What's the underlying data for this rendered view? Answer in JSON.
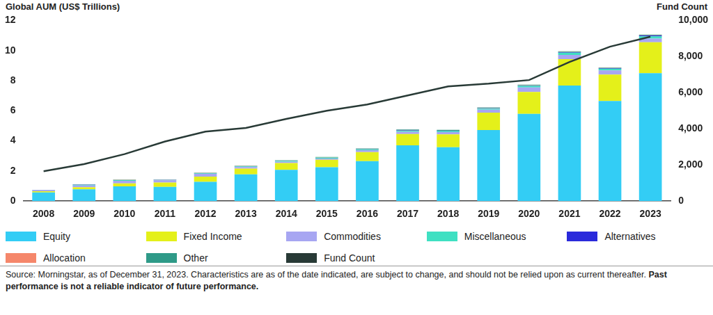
{
  "chart_data": {
    "type": "bar",
    "y_label": "Global AUM (US$ Trillions)",
    "y2_label": "Fund Count",
    "footnote": "Source: Morningstar, as of December 31, 2023. Characteristics are as of the date indicated, are subject to change, and should not be relied upon as current thereafter.",
    "footnote_bold": "Past performance is not a reliable indicator of future performance.",
    "categories": [
      "2008",
      "2009",
      "2010",
      "2011",
      "2012",
      "2013",
      "2014",
      "2015",
      "2016",
      "2017",
      "2018",
      "2019",
      "2020",
      "2021",
      "2022",
      "2023"
    ],
    "stacked": true,
    "grid": false,
    "legend": "bottom",
    "ylim": [
      0,
      12
    ],
    "yticks": [
      0,
      2,
      4,
      6,
      8,
      10,
      12
    ],
    "y2lim": [
      0,
      10000
    ],
    "y2ticks": [
      0,
      {
        "value": 2000,
        "label": "2,000"
      },
      {
        "value": 4000,
        "label": "4,000"
      },
      {
        "value": 6000,
        "label": "6,000"
      },
      {
        "value": 8000,
        "label": "8,000"
      },
      {
        "value": 10000,
        "label": "10,000"
      }
    ],
    "series": [
      {
        "name": "Equity",
        "color": "#33cdf5",
        "values": [
          0.58,
          0.78,
          0.98,
          0.95,
          1.28,
          1.78,
          2.08,
          2.25,
          2.65,
          3.7,
          3.58,
          4.72,
          5.8,
          7.68,
          6.65,
          8.5
        ]
      },
      {
        "name": "Fixed Income",
        "color": "#e4f01a",
        "values": [
          0.08,
          0.14,
          0.2,
          0.28,
          0.35,
          0.38,
          0.45,
          0.5,
          0.6,
          0.75,
          0.85,
          1.15,
          1.45,
          1.75,
          1.75,
          2.05
        ]
      },
      {
        "name": "Commodities",
        "color": "#a7a6f2",
        "values": [
          0.06,
          0.12,
          0.17,
          0.15,
          0.18,
          0.1,
          0.08,
          0.08,
          0.13,
          0.15,
          0.15,
          0.2,
          0.3,
          0.28,
          0.28,
          0.25
        ]
      },
      {
        "name": "Miscellaneous",
        "color": "#3fe0c2",
        "values": [
          0.01,
          0.03,
          0.04,
          0.03,
          0.04,
          0.05,
          0.06,
          0.05,
          0.06,
          0.08,
          0.07,
          0.07,
          0.1,
          0.15,
          0.12,
          0.15
        ]
      },
      {
        "name": "Alternatives",
        "color": "#2a2adb",
        "values": [
          0.005,
          0.01,
          0.01,
          0.01,
          0.01,
          0.01,
          0.01,
          0.01,
          0.01,
          0.02,
          0.02,
          0.02,
          0.03,
          0.03,
          0.03,
          0.05
        ]
      },
      {
        "name": "Allocation",
        "color": "#f5876b",
        "values": [
          0.002,
          0.003,
          0.004,
          0.004,
          0.005,
          0.005,
          0.006,
          0.006,
          0.007,
          0.008,
          0.008,
          0.01,
          0.01,
          0.012,
          0.012,
          0.015
        ]
      },
      {
        "name": "Other",
        "color": "#2f9a88",
        "values": [
          0.01,
          0.02,
          0.02,
          0.02,
          0.03,
          0.03,
          0.03,
          0.03,
          0.04,
          0.05,
          0.05,
          0.05,
          0.05,
          0.05,
          0.04,
          0.05
        ]
      },
      {
        "name": "Fund Count",
        "color": "#283a36",
        "type": "line",
        "marker": "none",
        "axis": "y2",
        "values": [
          1650,
          2050,
          2600,
          3300,
          3850,
          4050,
          4550,
          5000,
          5350,
          5850,
          6350,
          6500,
          6700,
          7700,
          8550,
          9100
        ]
      }
    ]
  }
}
